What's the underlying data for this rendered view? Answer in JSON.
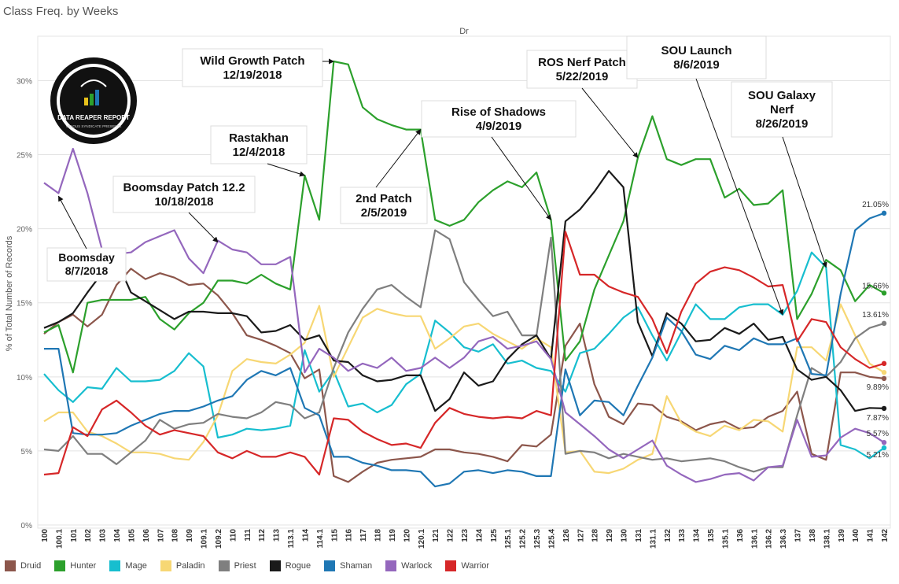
{
  "page_title": "Class Freq. by Weeks",
  "column_header": "Dr",
  "logo": {
    "text": "DATA REAPER REPORT",
    "subtext": "VICIOUS SYNDICATE PRESENTS"
  },
  "chart_data": {
    "type": "line",
    "ylabel": "% of Total Number of Records",
    "ylim": [
      0,
      33
    ],
    "yticks": [
      "0%",
      "5%",
      "10%",
      "15%",
      "20%",
      "25%",
      "30%"
    ],
    "grid": "horizontal",
    "legend_position": "bottom",
    "x": [
      "100",
      "100.1",
      "101",
      "102",
      "103",
      "104",
      "105",
      "106",
      "107",
      "108",
      "109",
      "109.1",
      "109.2",
      "110",
      "111",
      "112",
      "113",
      "113.1",
      "114",
      "114.1",
      "115",
      "116",
      "117",
      "118",
      "119",
      "120",
      "120.1",
      "121",
      "122",
      "123",
      "124",
      "125",
      "125.1",
      "125.2",
      "125.3",
      "125.4",
      "126",
      "127",
      "128",
      "129",
      "130",
      "131",
      "131.1",
      "132",
      "133",
      "134",
      "135",
      "135.1",
      "136",
      "136.1",
      "136.2",
      "136.3",
      "137",
      "138",
      "138.1",
      "139",
      "140",
      "141",
      "142"
    ],
    "series": [
      {
        "name": "Druid",
        "color": "#8c564b",
        "values": [
          12.9,
          13.7,
          14.2,
          13.4,
          14.2,
          16.2,
          17.3,
          16.6,
          17.0,
          16.7,
          16.2,
          16.3,
          15.5,
          14.3,
          12.8,
          12.5,
          12.1,
          11.6,
          9.9,
          10.5,
          3.3,
          2.9,
          3.6,
          4.2,
          4.4,
          4.5,
          4.6,
          5.1,
          5.1,
          4.9,
          4.8,
          4.6,
          4.3,
          5.4,
          5.3,
          6.1,
          12.1,
          13.6,
          9.5,
          7.3,
          6.8,
          8.2,
          8.1,
          7.3,
          7.0,
          6.4,
          6.8,
          7.0,
          6.5,
          6.6,
          7.3,
          7.7,
          9.0,
          4.8,
          4.4,
          10.3,
          10.3,
          10.0,
          9.89
        ],
        "end_label": "9.89%"
      },
      {
        "name": "Hunter",
        "color": "#2ca02c",
        "values": [
          13.0,
          13.5,
          10.3,
          15.0,
          15.2,
          15.2,
          15.2,
          15.4,
          13.9,
          13.2,
          14.3,
          15.0,
          16.5,
          16.5,
          16.3,
          16.9,
          16.3,
          15.9,
          23.6,
          20.6,
          31.3,
          31.1,
          28.2,
          27.4,
          27.0,
          26.7,
          26.7,
          20.6,
          20.2,
          20.6,
          21.8,
          22.6,
          23.2,
          22.8,
          23.8,
          20.6,
          11.1,
          12.4,
          15.9,
          18.2,
          20.5,
          24.8,
          27.6,
          24.7,
          24.3,
          24.7,
          24.7,
          22.1,
          22.7,
          21.6,
          21.7,
          22.6,
          13.9,
          15.6,
          17.9,
          17.2,
          15.1,
          16.2,
          15.66
        ],
        "end_label": "15.66%"
      },
      {
        "name": "Mage",
        "color": "#17becf",
        "values": [
          10.2,
          9.1,
          8.3,
          9.3,
          9.2,
          10.6,
          9.7,
          9.7,
          9.8,
          10.4,
          11.6,
          10.7,
          5.9,
          6.1,
          6.5,
          6.4,
          6.5,
          6.7,
          11.8,
          9.0,
          10.4,
          8.0,
          8.2,
          7.6,
          8.1,
          9.5,
          10.2,
          13.8,
          13.0,
          12.0,
          11.7,
          12.2,
          10.9,
          11.1,
          10.6,
          10.4,
          9.0,
          11.6,
          11.9,
          12.9,
          14.0,
          14.7,
          12.8,
          11.1,
          13.0,
          14.9,
          13.9,
          13.9,
          14.7,
          14.9,
          14.9,
          14.2,
          15.8,
          18.4,
          17.4,
          5.4,
          5.1,
          4.5,
          5.21
        ],
        "end_label": "5.21%"
      },
      {
        "name": "Paladin",
        "color": "#f7d774",
        "values": [
          7.0,
          7.6,
          7.6,
          6.3,
          6.0,
          5.5,
          4.9,
          4.9,
          4.8,
          4.5,
          4.4,
          5.6,
          7.4,
          10.4,
          11.2,
          11.0,
          10.9,
          11.5,
          12.3,
          14.8,
          10.0,
          12.0,
          14.0,
          14.6,
          14.3,
          14.1,
          14.1,
          11.9,
          12.6,
          13.4,
          13.6,
          12.9,
          12.4,
          11.9,
          12.6,
          12.0,
          4.9,
          5.0,
          3.6,
          3.5,
          3.8,
          4.4,
          4.8,
          8.7,
          6.9,
          6.3,
          6.0,
          6.7,
          6.4,
          7.1,
          7.0,
          6.3,
          12.0,
          12.0,
          11.1,
          14.9,
          12.8,
          10.9,
          10.3
        ],
        "end_label": null
      },
      {
        "name": "Priest",
        "color": "#7f7f7f",
        "values": [
          5.1,
          5.0,
          6.0,
          4.8,
          4.8,
          4.1,
          4.9,
          5.7,
          7.1,
          6.5,
          6.8,
          6.9,
          7.5,
          7.3,
          7.2,
          7.6,
          8.3,
          8.1,
          7.2,
          7.6,
          10.6,
          13.0,
          14.6,
          15.9,
          16.2,
          15.4,
          14.7,
          19.9,
          19.3,
          16.4,
          15.2,
          14.1,
          14.4,
          12.8,
          12.8,
          19.4,
          4.8,
          5.0,
          4.9,
          4.5,
          4.8,
          4.6,
          4.4,
          4.5,
          4.3,
          4.4,
          4.5,
          4.3,
          3.9,
          3.6,
          3.9,
          3.9,
          7.4,
          10.6,
          10.0,
          11.0,
          12.6,
          13.3,
          13.61
        ],
        "end_label": "13.61%"
      },
      {
        "name": "Rogue",
        "color": "#1a1a1a",
        "values": [
          13.3,
          13.7,
          14.3,
          15.7,
          17.0,
          17.9,
          15.7,
          15.1,
          14.5,
          13.9,
          14.4,
          14.4,
          14.3,
          14.3,
          14.1,
          13.0,
          13.1,
          13.5,
          12.5,
          12.8,
          11.1,
          11.0,
          10.1,
          9.7,
          9.8,
          10.1,
          10.1,
          7.7,
          8.5,
          10.3,
          9.4,
          9.7,
          11.2,
          12.2,
          12.8,
          11.2,
          20.5,
          21.3,
          22.5,
          23.9,
          22.8,
          13.7,
          11.4,
          14.3,
          13.6,
          12.4,
          12.5,
          13.3,
          12.9,
          13.6,
          12.5,
          12.7,
          10.5,
          9.8,
          10.0,
          9.1,
          7.7,
          7.9,
          7.87
        ],
        "end_label": "7.87%"
      },
      {
        "name": "Shaman",
        "color": "#1f77b4",
        "values": [
          11.9,
          11.9,
          6.2,
          6.1,
          6.1,
          6.2,
          6.7,
          7.1,
          7.5,
          7.7,
          7.7,
          8.0,
          8.4,
          8.7,
          9.8,
          10.4,
          10.1,
          10.6,
          7.9,
          7.4,
          4.6,
          4.6,
          4.2,
          4.0,
          3.7,
          3.7,
          3.6,
          2.6,
          2.8,
          3.6,
          3.7,
          3.5,
          3.7,
          3.6,
          3.3,
          3.3,
          10.5,
          7.4,
          8.4,
          8.3,
          7.4,
          9.4,
          11.3,
          14.0,
          13.1,
          11.5,
          11.2,
          12.1,
          11.8,
          12.6,
          12.2,
          12.2,
          12.6,
          10.2,
          10.1,
          15.6,
          19.9,
          20.7,
          21.05
        ],
        "end_label": "21.05%"
      },
      {
        "name": "Warlock",
        "color": "#9467bd",
        "values": [
          23.1,
          22.4,
          25.4,
          22.4,
          18.6,
          18.3,
          18.4,
          19.1,
          19.5,
          19.9,
          18.0,
          17.0,
          19.2,
          18.6,
          18.4,
          17.6,
          17.6,
          18.1,
          10.3,
          11.9,
          11.3,
          10.4,
          10.9,
          10.6,
          11.3,
          10.4,
          10.6,
          11.3,
          10.6,
          11.3,
          12.4,
          12.7,
          11.9,
          12.1,
          12.4,
          11.2,
          7.6,
          6.8,
          6.0,
          5.1,
          4.5,
          5.1,
          5.7,
          4.0,
          3.4,
          2.9,
          3.1,
          3.4,
          3.5,
          3.0,
          3.9,
          4.0,
          7.1,
          4.6,
          4.7,
          5.9,
          6.5,
          6.2,
          5.57
        ],
        "end_label": "5.57%"
      },
      {
        "name": "Warrior",
        "color": "#d62728",
        "values": [
          3.4,
          3.5,
          6.6,
          6.0,
          7.8,
          8.4,
          7.6,
          6.7,
          6.1,
          6.4,
          6.2,
          6.0,
          4.9,
          4.5,
          5.0,
          4.6,
          4.6,
          4.9,
          4.6,
          3.4,
          7.2,
          7.1,
          6.3,
          5.8,
          5.4,
          5.5,
          5.2,
          6.9,
          7.9,
          7.5,
          7.3,
          7.2,
          7.3,
          7.2,
          7.7,
          7.4,
          19.8,
          16.9,
          16.9,
          16.1,
          15.7,
          15.4,
          13.9,
          11.6,
          14.4,
          16.3,
          17.1,
          17.4,
          17.2,
          16.7,
          16.1,
          16.2,
          12.4,
          13.9,
          13.7,
          12.0,
          11.2,
          10.6,
          10.9
        ],
        "end_label": null
      }
    ],
    "annotations": [
      {
        "lines": [
          "Boomsday",
          "8/7/2018"
        ],
        "points_to": "100.1"
      },
      {
        "lines": [
          "Boomsday Patch 12.2",
          "10/18/2018"
        ],
        "points_to": "109.2"
      },
      {
        "lines": [
          "Rastakhan",
          "12/4/2018"
        ],
        "points_to": "114"
      },
      {
        "lines": [
          "Wild Growth Patch",
          "12/19/2018"
        ],
        "points_to": "115"
      },
      {
        "lines": [
          "2nd Patch",
          "2/5/2019"
        ],
        "points_to": "120.1"
      },
      {
        "lines": [
          "Rise of Shadows",
          "4/9/2019"
        ],
        "points_to": "125.4"
      },
      {
        "lines": [
          "ROS Nerf Patch",
          "5/22/2019"
        ],
        "points_to": "131"
      },
      {
        "lines": [
          "SOU Launch",
          "8/6/2019"
        ],
        "points_to": "136.3"
      },
      {
        "lines": [
          "SOU Galaxy",
          "Nerf",
          "8/26/2019"
        ],
        "points_to": "138.1"
      }
    ]
  }
}
